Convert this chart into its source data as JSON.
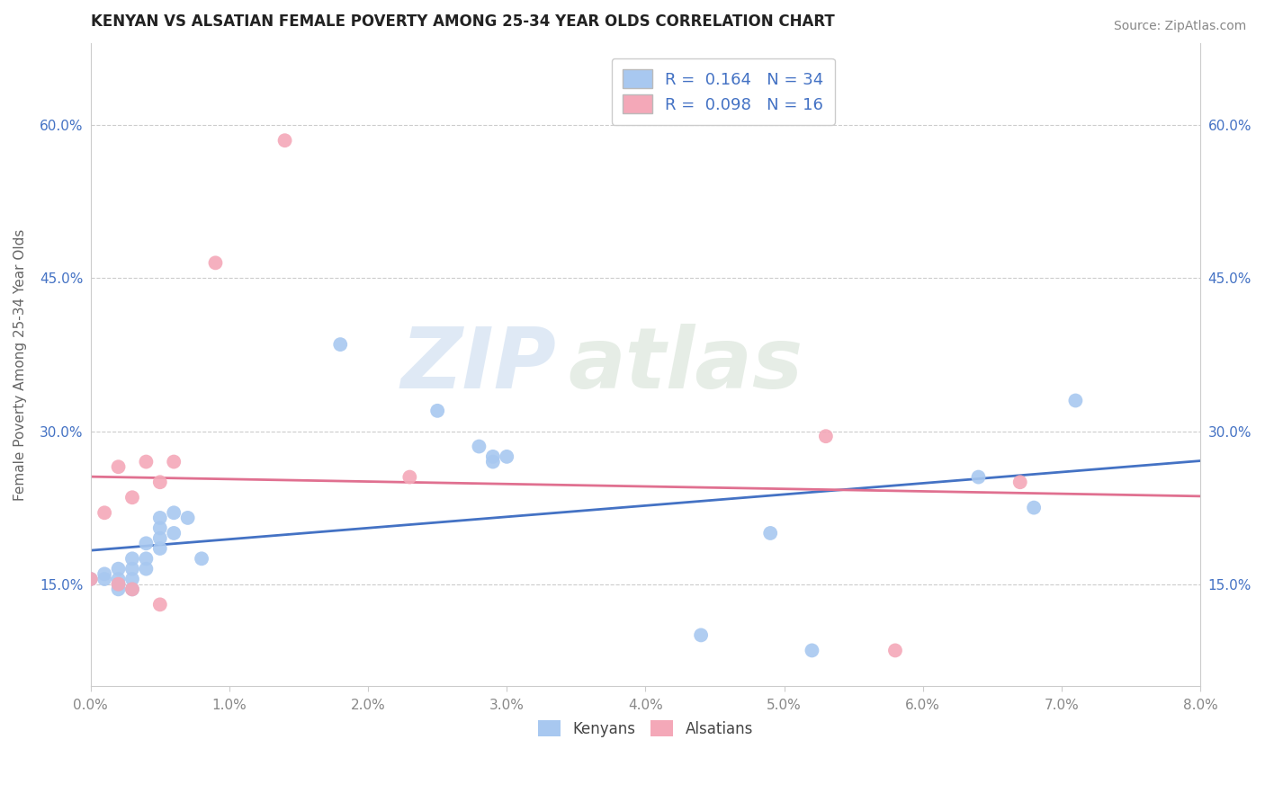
{
  "title": "KENYAN VS ALSATIAN FEMALE POVERTY AMONG 25-34 YEAR OLDS CORRELATION CHART",
  "source": "Source: ZipAtlas.com",
  "ylabel": "Female Poverty Among 25-34 Year Olds",
  "xlim": [
    0.0,
    0.08
  ],
  "ylim": [
    0.05,
    0.68
  ],
  "xticks": [
    0.0,
    0.01,
    0.02,
    0.03,
    0.04,
    0.05,
    0.06,
    0.07,
    0.08
  ],
  "yticks": [
    0.15,
    0.3,
    0.45,
    0.6
  ],
  "ytick_labels": [
    "15.0%",
    "30.0%",
    "45.0%",
    "60.0%"
  ],
  "xtick_labels": [
    "0.0%",
    "1.0%",
    "2.0%",
    "3.0%",
    "4.0%",
    "5.0%",
    "6.0%",
    "7.0%",
    "8.0%"
  ],
  "kenyan_R": "0.164",
  "kenyan_N": "34",
  "alsatian_R": "0.098",
  "alsatian_N": "16",
  "kenyan_color": "#a8c8f0",
  "alsatian_color": "#f4a8b8",
  "kenyan_line_color": "#4472c4",
  "alsatian_line_color": "#e07090",
  "kenyan_x": [
    0.0,
    0.001,
    0.001,
    0.002,
    0.002,
    0.002,
    0.002,
    0.003,
    0.003,
    0.003,
    0.003,
    0.004,
    0.004,
    0.004,
    0.005,
    0.005,
    0.005,
    0.005,
    0.006,
    0.006,
    0.007,
    0.008,
    0.018,
    0.025,
    0.028,
    0.029,
    0.029,
    0.03,
    0.044,
    0.049,
    0.052,
    0.064,
    0.068,
    0.071
  ],
  "kenyan_y": [
    0.155,
    0.155,
    0.16,
    0.145,
    0.15,
    0.155,
    0.165,
    0.145,
    0.155,
    0.165,
    0.175,
    0.165,
    0.175,
    0.19,
    0.185,
    0.195,
    0.205,
    0.215,
    0.2,
    0.22,
    0.215,
    0.175,
    0.385,
    0.32,
    0.285,
    0.27,
    0.275,
    0.275,
    0.1,
    0.2,
    0.085,
    0.255,
    0.225,
    0.33
  ],
  "alsatian_x": [
    0.0,
    0.001,
    0.002,
    0.002,
    0.003,
    0.003,
    0.004,
    0.005,
    0.005,
    0.006,
    0.009,
    0.014,
    0.023,
    0.053,
    0.058,
    0.067
  ],
  "alsatian_y": [
    0.155,
    0.22,
    0.15,
    0.265,
    0.145,
    0.235,
    0.27,
    0.13,
    0.25,
    0.27,
    0.465,
    0.585,
    0.255,
    0.295,
    0.085,
    0.25
  ],
  "watermark_zip": "ZIP",
  "watermark_atlas": "atlas",
  "background_color": "#ffffff",
  "title_fontsize": 12,
  "legend_fontsize": 13,
  "tick_fontsize": 11,
  "tick_color": "#888888",
  "label_color": "#4472c4"
}
